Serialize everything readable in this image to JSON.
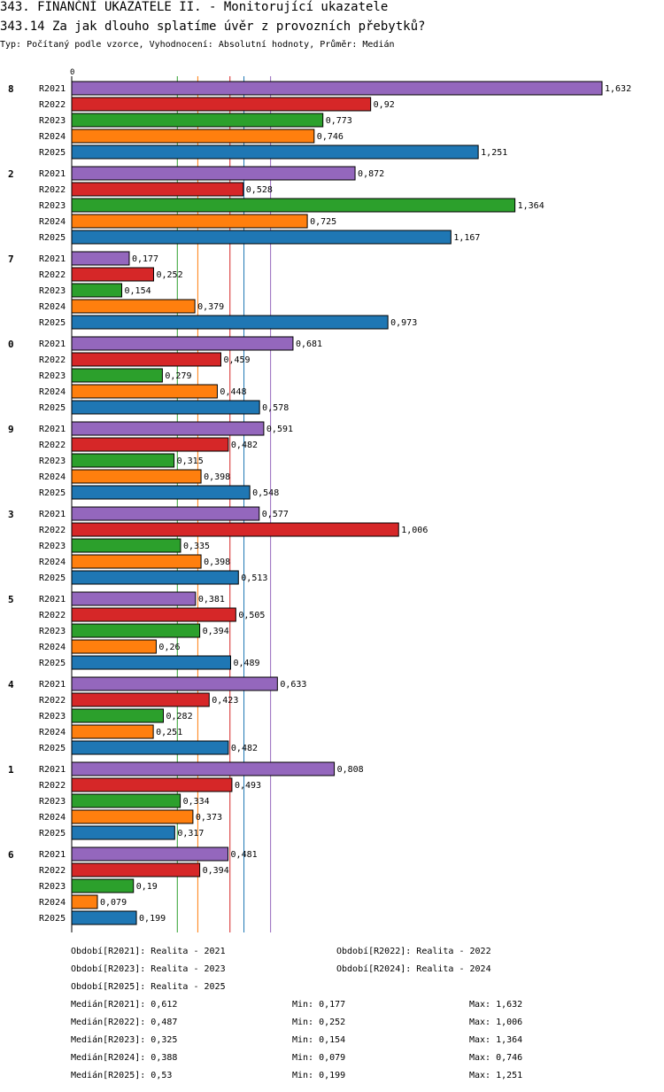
{
  "header": {
    "title": "343. FINANČNÍ UKAZATELE II. - Monitorující ukazatele",
    "subtitle": "343.14 Za jak dlouho splatíme úvěr z provozních přebytků?",
    "meta": "Typ: Počítaný podle vzorce, Vyhodnocení: Absolutní hodnoty, Průměr: Medián"
  },
  "colors": {
    "R2021": "#9467bd",
    "R2022": "#d62728",
    "R2023": "#2ca02c",
    "R2024": "#ff7f0e",
    "R2025": "#1f77b4"
  },
  "chart_data": {
    "type": "bar",
    "orientation": "horizontal",
    "axis_zero_label": "0",
    "xlim": [
      0,
      1.632
    ],
    "series_names": [
      "R2021",
      "R2022",
      "R2023",
      "R2024",
      "R2025"
    ],
    "groups": [
      {
        "label": "8",
        "values": [
          "1,632",
          "0,92",
          "0,773",
          "0,746",
          "1,251"
        ]
      },
      {
        "label": "2",
        "values": [
          "0,872",
          "0,528",
          "1,364",
          "0,725",
          "1,167"
        ]
      },
      {
        "label": "7",
        "values": [
          "0,177",
          "0,252",
          "0,154",
          "0,379",
          "0,973"
        ]
      },
      {
        "label": "0",
        "values": [
          "0,681",
          "0,459",
          "0,279",
          "0,448",
          "0,578"
        ]
      },
      {
        "label": "9",
        "values": [
          "0,591",
          "0,482",
          "0,315",
          "0,398",
          "0,548"
        ]
      },
      {
        "label": "3",
        "values": [
          "0,577",
          "1,006",
          "0,335",
          "0,398",
          "0,513"
        ]
      },
      {
        "label": "5",
        "values": [
          "0,381",
          "0,505",
          "0,394",
          "0,26",
          "0,489"
        ]
      },
      {
        "label": "4",
        "values": [
          "0,633",
          "0,423",
          "0,282",
          "0,251",
          "0,482"
        ]
      },
      {
        "label": "1",
        "values": [
          "0,808",
          "0,493",
          "0,334",
          "0,373",
          "0,317"
        ]
      },
      {
        "label": "6",
        "values": [
          "0,481",
          "0,394",
          "0,19",
          "0,079",
          "0,199"
        ]
      }
    ],
    "reference_lines": [
      {
        "series": "R2021",
        "value": 0.612
      },
      {
        "series": "R2022",
        "value": 0.487
      },
      {
        "series": "R2023",
        "value": 0.325
      },
      {
        "series": "R2024",
        "value": 0.388
      },
      {
        "series": "R2025",
        "value": 0.53
      }
    ]
  },
  "legend": {
    "periods": [
      "Období[R2021]: Realita - 2021",
      "Období[R2022]: Realita - 2022",
      "Období[R2023]: Realita - 2023",
      "Období[R2024]: Realita - 2024",
      "Období[R2025]: Realita - 2025"
    ],
    "stats": [
      {
        "median": "Medián[R2021]: 0,612",
        "min": "Min: 0,177",
        "max": "Max: 1,632"
      },
      {
        "median": "Medián[R2022]: 0,487",
        "min": "Min: 0,252",
        "max": "Max: 1,006"
      },
      {
        "median": "Medián[R2023]: 0,325",
        "min": "Min: 0,154",
        "max": "Max: 1,364"
      },
      {
        "median": "Medián[R2024]: 0,388",
        "min": "Min: 0,079",
        "max": "Max: 0,746"
      },
      {
        "median": "Medián[R2025]: 0,53",
        "min": "Min: 0,199",
        "max": "Max: 1,251"
      }
    ]
  }
}
